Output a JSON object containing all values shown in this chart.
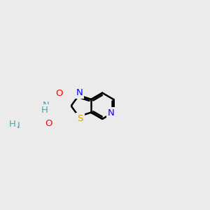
{
  "background_color": "#ebebeb",
  "atom_colors": {
    "N": "#0000ff",
    "S": "#ccaa00",
    "O": "#ff0000",
    "NH": "#5f9ea0",
    "C": "#000000"
  },
  "line_color": "#000000",
  "line_width": 1.8,
  "font_size": 9.5
}
